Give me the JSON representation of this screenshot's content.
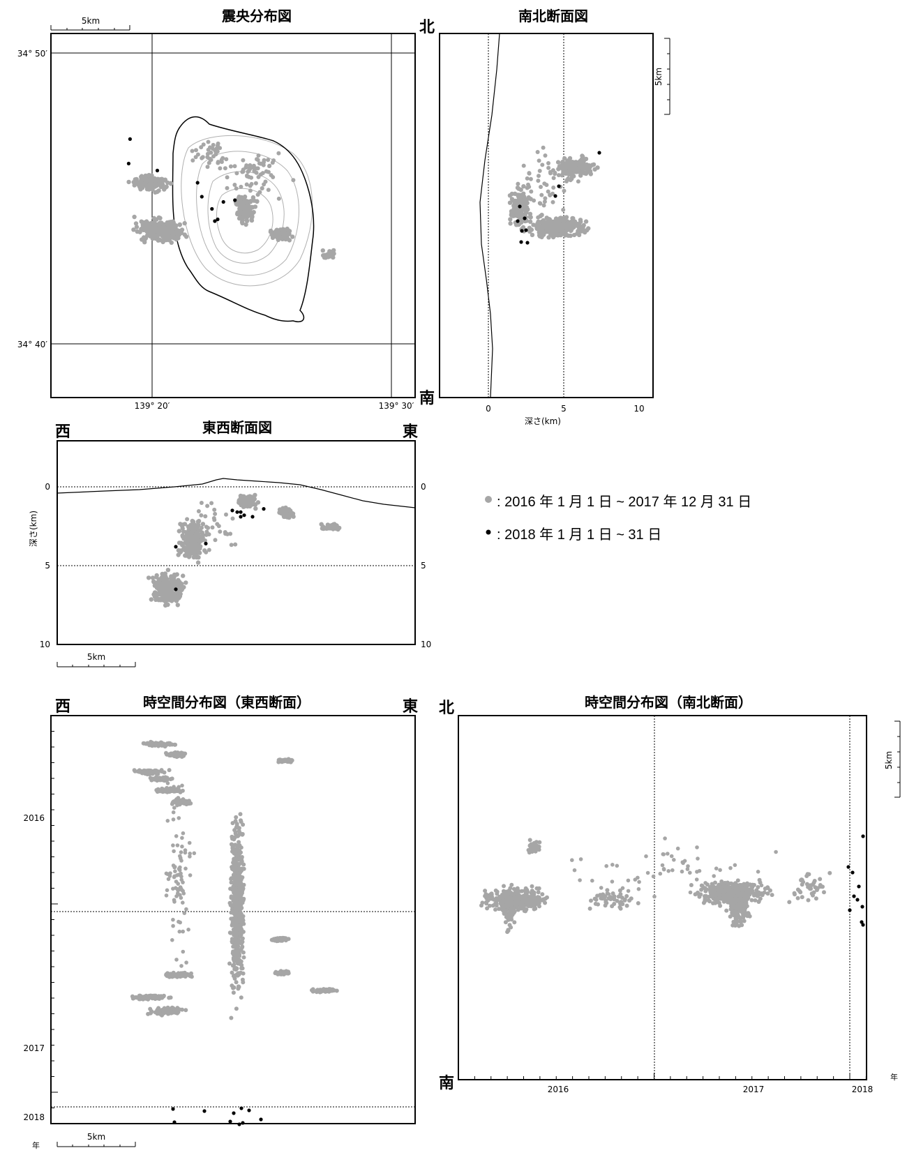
{
  "epicenter_map": {
    "title": "震央分布図",
    "scale_label": "5km",
    "lat_labels": [
      "34° 50′",
      "34° 40′"
    ],
    "lon_labels": [
      "139° 20′",
      "139° 30′"
    ]
  },
  "ns_section": {
    "title": "南北断面図",
    "north": "北",
    "south": "南",
    "xlabel": "深さ(km)",
    "xticks": [
      "0",
      "5",
      "10"
    ],
    "scale_label": "5km"
  },
  "ew_section": {
    "title": "東西断面図",
    "west": "西",
    "east": "東",
    "ylabel": "深さ(km)",
    "yticks": [
      "0",
      "5",
      "10"
    ],
    "scale_label": "5km"
  },
  "legend": {
    "gray": ": 2016 年 1 月 1 日 ~ 2017 年 12 月 31 日",
    "black": ": 2018 年 1 月 1 日 ~ 31 日"
  },
  "st_ew": {
    "title": "時空間分布図（東西断面）",
    "west": "西",
    "east": "東",
    "year_labels": [
      "2016",
      "2017",
      "2018"
    ],
    "year_unit": "年",
    "scale_label": "5km"
  },
  "st_ns": {
    "title": "時空間分布図（南北断面）",
    "north": "北",
    "south": "南",
    "year_labels": [
      "2016",
      "2017",
      "2018"
    ],
    "year_unit": "年",
    "scale_label": "5km"
  },
  "colors": {
    "gray": "#a6a6a6",
    "black": "#000000"
  },
  "chart_data": [
    {
      "type": "scatter",
      "title": "震央分布図",
      "clusters_lonlat": [
        {
          "lon": 139.305,
          "lat": 34.742,
          "w": 0.06,
          "h": 0.03,
          "n": 200,
          "series": "2016-2017"
        },
        {
          "lon": 139.31,
          "lat": 34.77,
          "w": 0.05,
          "h": 0.025,
          "n": 90,
          "series": "2016-2017"
        },
        {
          "lon": 139.378,
          "lat": 34.755,
          "w": 0.03,
          "h": 0.035,
          "n": 120,
          "series": "2016-2017"
        },
        {
          "lon": 139.43,
          "lat": 34.738,
          "w": 0.04,
          "h": 0.02,
          "n": 60,
          "series": "2016-2017"
        },
        {
          "lon": 139.4,
          "lat": 34.78,
          "w": 0.09,
          "h": 0.05,
          "n": 60,
          "series": "2016-2017"
        }
      ],
      "points_2018_lonlat": [
        [
          139.318,
          34.784
        ],
        [
          139.317,
          34.77
        ],
        [
          139.337,
          34.766
        ],
        [
          139.365,
          34.759
        ],
        [
          139.368,
          34.751
        ],
        [
          139.383,
          34.748
        ],
        [
          139.375,
          34.744
        ],
        [
          139.379,
          34.738
        ],
        [
          139.377,
          34.737
        ],
        [
          139.391,
          34.749
        ]
      ]
    },
    {
      "type": "scatter",
      "title": "東西断面図",
      "ylabel": "深さ(km)",
      "ylim": [
        10,
        0
      ],
      "points_2018_depth_km": [
        1.5,
        1.6,
        1.6,
        1.8,
        1.9,
        1.9,
        3.8,
        3.6,
        6.5,
        1.4
      ]
    }
  ]
}
